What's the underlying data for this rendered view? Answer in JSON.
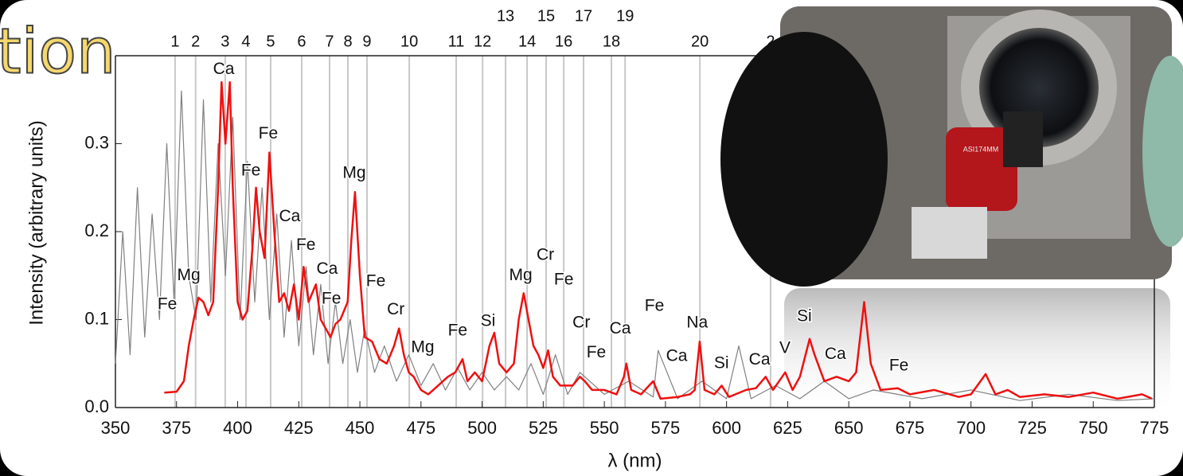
{
  "slide_title_fragment": "tion",
  "photo_text": "ASI174MM",
  "chart_data": {
    "type": "line",
    "x_label": "λ (nm)",
    "y_label": "Intensity (arbitrary units)",
    "xlim": [
      350,
      775
    ],
    "xticks": [
      350,
      375,
      400,
      425,
      450,
      475,
      500,
      525,
      550,
      575,
      600,
      625,
      650,
      675,
      700,
      725,
      750,
      775
    ],
    "ylim": [
      0,
      0.4
    ],
    "yticks": [
      {
        "value": 0,
        "label": "0.0"
      },
      0.1,
      0.2,
      0.3
    ],
    "series": [
      {
        "color": "#808080",
        "x": [
          350,
          353,
          356,
          359,
          362,
          365,
          368,
          371,
          374,
          377,
          380,
          383,
          386,
          389,
          392,
          395,
          398,
          401,
          404,
          407,
          410,
          413,
          416,
          419,
          422,
          425,
          428,
          431,
          434,
          437,
          440,
          443,
          446,
          449,
          452,
          456,
          460,
          465,
          470,
          475,
          480,
          485,
          490,
          495,
          500,
          505,
          510,
          515,
          520,
          525,
          530,
          535,
          540,
          550,
          560,
          570,
          572,
          580,
          590,
          600,
          605,
          610,
          620,
          630,
          640,
          650,
          660,
          680,
          700,
          720,
          740,
          760,
          775
        ],
        "values": [
          0.05,
          0.2,
          0.06,
          0.25,
          0.08,
          0.22,
          0.1,
          0.3,
          0.12,
          0.36,
          0.15,
          0.1,
          0.35,
          0.12,
          0.3,
          0.15,
          0.33,
          0.1,
          0.28,
          0.12,
          0.25,
          0.1,
          0.22,
          0.08,
          0.19,
          0.07,
          0.16,
          0.06,
          0.14,
          0.05,
          0.12,
          0.05,
          0.1,
          0.04,
          0.09,
          0.04,
          0.07,
          0.03,
          0.06,
          0.025,
          0.05,
          0.02,
          0.045,
          0.02,
          0.04,
          0.02,
          0.035,
          0.02,
          0.05,
          0.015,
          0.06,
          0.015,
          0.04,
          0.015,
          0.03,
          0.012,
          0.065,
          0.01,
          0.03,
          0.01,
          0.07,
          0.01,
          0.025,
          0.01,
          0.03,
          0.01,
          0.02,
          0.01,
          0.02,
          0.008,
          0.015,
          0.008,
          0.01
        ]
      },
      {
        "color": "#ee1111",
        "x": [
          370,
          375,
          378,
          380,
          382,
          384,
          386,
          388,
          390,
          392,
          393.4,
          395,
          396.8,
          398,
          400,
          402,
          404,
          406,
          407.5,
          409,
          411,
          413,
          415,
          417,
          419,
          421,
          423,
          425,
          427,
          429,
          432,
          434,
          436,
          438,
          440,
          442,
          445,
          446.5,
          448,
          450,
          452,
          455,
          458,
          461,
          464,
          466,
          468,
          470,
          472,
          475,
          478,
          482,
          486,
          489,
          492,
          494,
          497,
          500,
          503,
          505,
          507,
          510,
          513,
          515,
          517,
          519,
          521,
          523,
          525,
          527,
          529,
          532,
          537,
          540,
          542,
          545,
          550,
          555,
          558,
          559,
          561,
          565,
          570,
          573,
          580,
          585,
          587,
          589,
          591,
          595,
          598,
          601,
          608,
          612,
          616,
          619,
          624,
          627,
          630,
          634,
          636,
          640,
          645,
          650,
          653,
          656.3,
          659,
          663,
          670,
          675,
          685,
          695,
          700,
          706,
          710,
          715,
          720,
          730,
          740,
          750,
          760,
          770,
          774
        ],
        "values": [
          0.017,
          0.018,
          0.03,
          0.07,
          0.1,
          0.125,
          0.12,
          0.105,
          0.12,
          0.25,
          0.37,
          0.3,
          0.37,
          0.25,
          0.12,
          0.1,
          0.11,
          0.18,
          0.25,
          0.2,
          0.17,
          0.29,
          0.2,
          0.12,
          0.13,
          0.11,
          0.14,
          0.1,
          0.16,
          0.12,
          0.14,
          0.1,
          0.09,
          0.08,
          0.095,
          0.1,
          0.12,
          0.19,
          0.245,
          0.15,
          0.08,
          0.075,
          0.055,
          0.05,
          0.07,
          0.09,
          0.06,
          0.04,
          0.035,
          0.02,
          0.015,
          0.025,
          0.035,
          0.04,
          0.055,
          0.03,
          0.04,
          0.03,
          0.07,
          0.085,
          0.05,
          0.04,
          0.05,
          0.1,
          0.13,
          0.1,
          0.07,
          0.06,
          0.045,
          0.065,
          0.035,
          0.025,
          0.025,
          0.035,
          0.03,
          0.02,
          0.02,
          0.015,
          0.035,
          0.05,
          0.02,
          0.015,
          0.03,
          0.01,
          0.012,
          0.015,
          0.02,
          0.075,
          0.02,
          0.015,
          0.025,
          0.012,
          0.02,
          0.022,
          0.035,
          0.02,
          0.04,
          0.02,
          0.035,
          0.078,
          0.06,
          0.03,
          0.035,
          0.03,
          0.04,
          0.12,
          0.05,
          0.02,
          0.022,
          0.015,
          0.02,
          0.012,
          0.015,
          0.038,
          0.015,
          0.02,
          0.012,
          0.015,
          0.012,
          0.017,
          0.01,
          0.015,
          0.01
        ]
      }
    ],
    "reference_lines": {
      "labels": [
        "1",
        "2",
        "3",
        "4",
        "5",
        "6",
        "7",
        "8",
        "9",
        "10",
        "11",
        "12",
        "13",
        "14",
        "15",
        "16",
        "17",
        "18",
        "19",
        "20",
        "2"
      ],
      "x": [
        374.4,
        382.8,
        394.9,
        403.4,
        413.5,
        426.2,
        437.6,
        445.1,
        452.9,
        470.2,
        489.4,
        500.2,
        509.6,
        518.4,
        526.2,
        533.4,
        541.5,
        552.9,
        558.5,
        589.1,
        618
      ]
    },
    "annotations": [
      {
        "text": "Ca",
        "x": 394.3,
        "y": 0.384
      },
      {
        "text": "Fe",
        "x": 412.5,
        "y": 0.311
      },
      {
        "text": "Fe",
        "x": 405.4,
        "y": 0.269
      },
      {
        "text": "Mg",
        "x": 447.7,
        "y": 0.266
      },
      {
        "text": "Ca",
        "x": 421.3,
        "y": 0.217
      },
      {
        "text": "Fe",
        "x": 427.9,
        "y": 0.184
      },
      {
        "text": "Ca",
        "x": 436.6,
        "y": 0.157
      },
      {
        "text": "Mg",
        "x": 380,
        "y": 0.15
      },
      {
        "text": "Fe",
        "x": 438.3,
        "y": 0.123
      },
      {
        "text": "Fe",
        "x": 456.5,
        "y": 0.143
      },
      {
        "text": "Fe",
        "x": 371.2,
        "y": 0.117
      },
      {
        "text": "Cr",
        "x": 464.7,
        "y": 0.111
      },
      {
        "text": "Mg",
        "x": 475.7,
        "y": 0.068
      },
      {
        "text": "Fe",
        "x": 490,
        "y": 0.087
      },
      {
        "text": "Si",
        "x": 502.4,
        "y": 0.098
      },
      {
        "text": "Mg",
        "x": 515.8,
        "y": 0.15
      },
      {
        "text": "Cr",
        "x": 525.9,
        "y": 0.173
      },
      {
        "text": "Fe",
        "x": 533.4,
        "y": 0.145
      },
      {
        "text": "Cr",
        "x": 540.6,
        "y": 0.096
      },
      {
        "text": "Fe",
        "x": 546.7,
        "y": 0.062
      },
      {
        "text": "Ca",
        "x": 556.5,
        "y": 0.089
      },
      {
        "text": "Fe",
        "x": 570.5,
        "y": 0.115
      },
      {
        "text": "Ca",
        "x": 579.6,
        "y": 0.058
      },
      {
        "text": "Na",
        "x": 588,
        "y": 0.096
      },
      {
        "text": "Si",
        "x": 597.9,
        "y": 0.05
      },
      {
        "text": "Ca",
        "x": 613.5,
        "y": 0.054
      },
      {
        "text": "V",
        "x": 623.9,
        "y": 0.067
      },
      {
        "text": "Si",
        "x": 631.8,
        "y": 0.103
      },
      {
        "text": "Ca",
        "x": 644.5,
        "y": 0.06
      },
      {
        "text": "Fe",
        "x": 670.5,
        "y": 0.047
      }
    ]
  }
}
